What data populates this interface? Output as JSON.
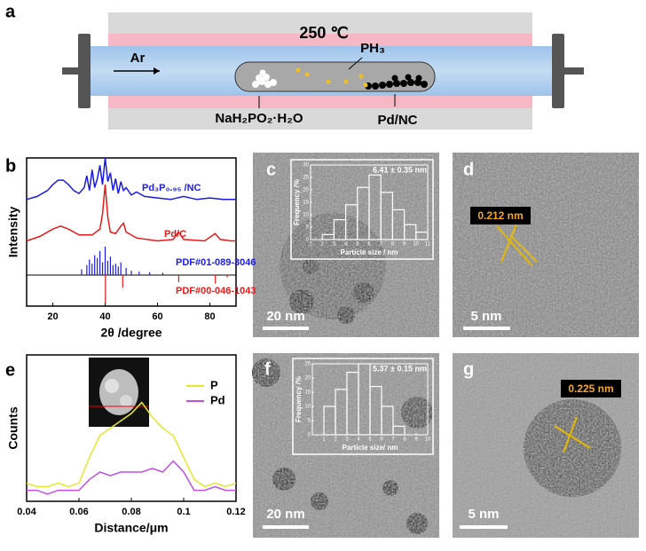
{
  "figure": {
    "panel_a": {
      "label": "a",
      "temperature": "250 ℃",
      "gas": "Ar",
      "gas_product": "PH₃",
      "precursor": "NaH₂PO₂·H₂O",
      "support": "Pd/NC"
    },
    "panel_b": {
      "label": "b"
    },
    "panel_c": {
      "label": "c",
      "scale_bar": "20 nm"
    },
    "panel_d": {
      "label": "d",
      "lattice_spacing": "0.212 nm",
      "scale_bar": "5 nm"
    },
    "panel_e": {
      "label": "e"
    },
    "panel_f": {
      "label": "f",
      "scale_bar": "20 nm"
    },
    "panel_g": {
      "label": "g",
      "lattice_spacing": "0.225 nm",
      "scale_bar": "5 nm"
    }
  },
  "chart_data": [
    {
      "type": "line",
      "xlabel": "2θ /degree",
      "ylabel": "Intensity",
      "xlim": [
        10,
        90
      ],
      "xticks": [
        20,
        40,
        60,
        80
      ],
      "ylim": [
        0,
        100
      ],
      "series": [
        {
          "name": "Pd₃P₀.₉₅ /NC",
          "color": "#1a1ae6",
          "x": [
            10,
            14,
            18,
            20,
            22,
            24,
            26,
            28,
            30,
            32,
            33,
            34,
            35,
            36,
            37,
            38,
            39,
            40,
            41,
            42,
            43,
            44,
            45,
            46,
            47,
            48,
            50,
            52,
            55,
            60,
            65,
            70,
            75,
            80,
            85,
            90
          ],
          "values": [
            72,
            74,
            78,
            82,
            85,
            85,
            82,
            78,
            76,
            80,
            88,
            78,
            92,
            80,
            86,
            95,
            82,
            100,
            84,
            90,
            78,
            86,
            76,
            84,
            78,
            80,
            75,
            77,
            74,
            73,
            72,
            74,
            72,
            73,
            72,
            72
          ]
        },
        {
          "name": "Pd/C",
          "color": "#e61a1a",
          "x": [
            10,
            15,
            20,
            23,
            26,
            30,
            35,
            38,
            39,
            40,
            41,
            42,
            44,
            46,
            47,
            48,
            52,
            60,
            66,
            68,
            70,
            78,
            82,
            84,
            88,
            90
          ],
          "values": [
            44,
            47,
            52,
            54,
            52,
            48,
            48,
            52,
            62,
            82,
            60,
            50,
            49,
            54,
            56,
            50,
            46,
            44,
            45,
            50,
            45,
            44,
            49,
            45,
            44,
            44
          ]
        }
      ],
      "references": [
        {
          "name": "PDF#01-089-3046",
          "color": "#1a1ae6",
          "x": [
            31,
            33,
            34,
            35,
            36,
            37,
            38,
            39,
            40,
            41,
            42,
            43,
            44,
            45,
            46,
            48,
            50,
            53,
            57,
            62
          ],
          "values": [
            20,
            35,
            55,
            40,
            70,
            60,
            85,
            45,
            100,
            50,
            65,
            35,
            40,
            30,
            45,
            25,
            15,
            12,
            10,
            8
          ]
        },
        {
          "name": "PDF#00-046-1043",
          "color": "#e61a1a",
          "x": [
            40.1,
            46.7,
            68.1,
            82.1,
            86.6
          ],
          "values": [
            100,
            45,
            25,
            30,
            8
          ]
        }
      ]
    },
    {
      "type": "histogram",
      "text": "6.41 ± 0.35 nm",
      "xlabel": "Particle size / nm",
      "ylabel": "Frequency /%",
      "bins": [
        2,
        3,
        4,
        5,
        6,
        7,
        8,
        9,
        10,
        11
      ],
      "values": [
        2,
        8,
        14,
        21,
        26,
        19,
        12,
        6,
        3
      ],
      "xlim": [
        1,
        11
      ],
      "xticks": [
        1,
        2,
        3,
        4,
        5,
        6,
        7,
        8,
        9,
        10,
        11
      ],
      "ylim": [
        0,
        30
      ],
      "yticks": [
        0,
        5,
        10,
        15,
        20,
        25,
        30
      ]
    },
    {
      "type": "histogram",
      "text": "5.37 ± 0.15 nm",
      "xlabel": "Particle size/ nm",
      "ylabel": "Frequency /%",
      "bins": [
        1,
        2,
        3,
        4,
        5,
        6,
        7,
        8
      ],
      "values": [
        10,
        16,
        22,
        25,
        17,
        10,
        3
      ],
      "xlim": [
        0,
        10
      ],
      "xticks": [
        1,
        2,
        3,
        4,
        5,
        6,
        7,
        8,
        9,
        10
      ],
      "ylim": [
        0,
        25
      ],
      "yticks": [
        0,
        5,
        10,
        15,
        20,
        25
      ]
    },
    {
      "type": "line",
      "xlabel": "Distance/μm",
      "ylabel": "Counts",
      "xlim": [
        0.04,
        0.12
      ],
      "xticks": [
        0.04,
        0.06,
        0.08,
        0.1,
        0.12
      ],
      "ylim": [
        0,
        40
      ],
      "legend": "upper right",
      "series": [
        {
          "name": "P",
          "color": "#e6e62e",
          "x": [
            0.04,
            0.044,
            0.048,
            0.052,
            0.056,
            0.06,
            0.064,
            0.068,
            0.072,
            0.076,
            0.08,
            0.084,
            0.088,
            0.092,
            0.096,
            0.1,
            0.104,
            0.108,
            0.112,
            0.116,
            0.12
          ],
          "values": [
            5,
            4,
            4,
            5,
            4,
            5,
            12,
            18,
            20,
            22,
            24,
            27,
            23,
            20,
            18,
            12,
            6,
            4,
            5,
            4,
            5
          ]
        },
        {
          "name": "Pd",
          "color": "#c14fe6",
          "x": [
            0.04,
            0.044,
            0.048,
            0.052,
            0.056,
            0.06,
            0.064,
            0.068,
            0.072,
            0.076,
            0.08,
            0.084,
            0.088,
            0.092,
            0.096,
            0.1,
            0.104,
            0.108,
            0.112,
            0.116,
            0.12
          ],
          "values": [
            3,
            3,
            2,
            3,
            3,
            3,
            6,
            8,
            7,
            8,
            8,
            8,
            9,
            8,
            11,
            8,
            3,
            3,
            4,
            3,
            3
          ]
        }
      ]
    }
  ]
}
